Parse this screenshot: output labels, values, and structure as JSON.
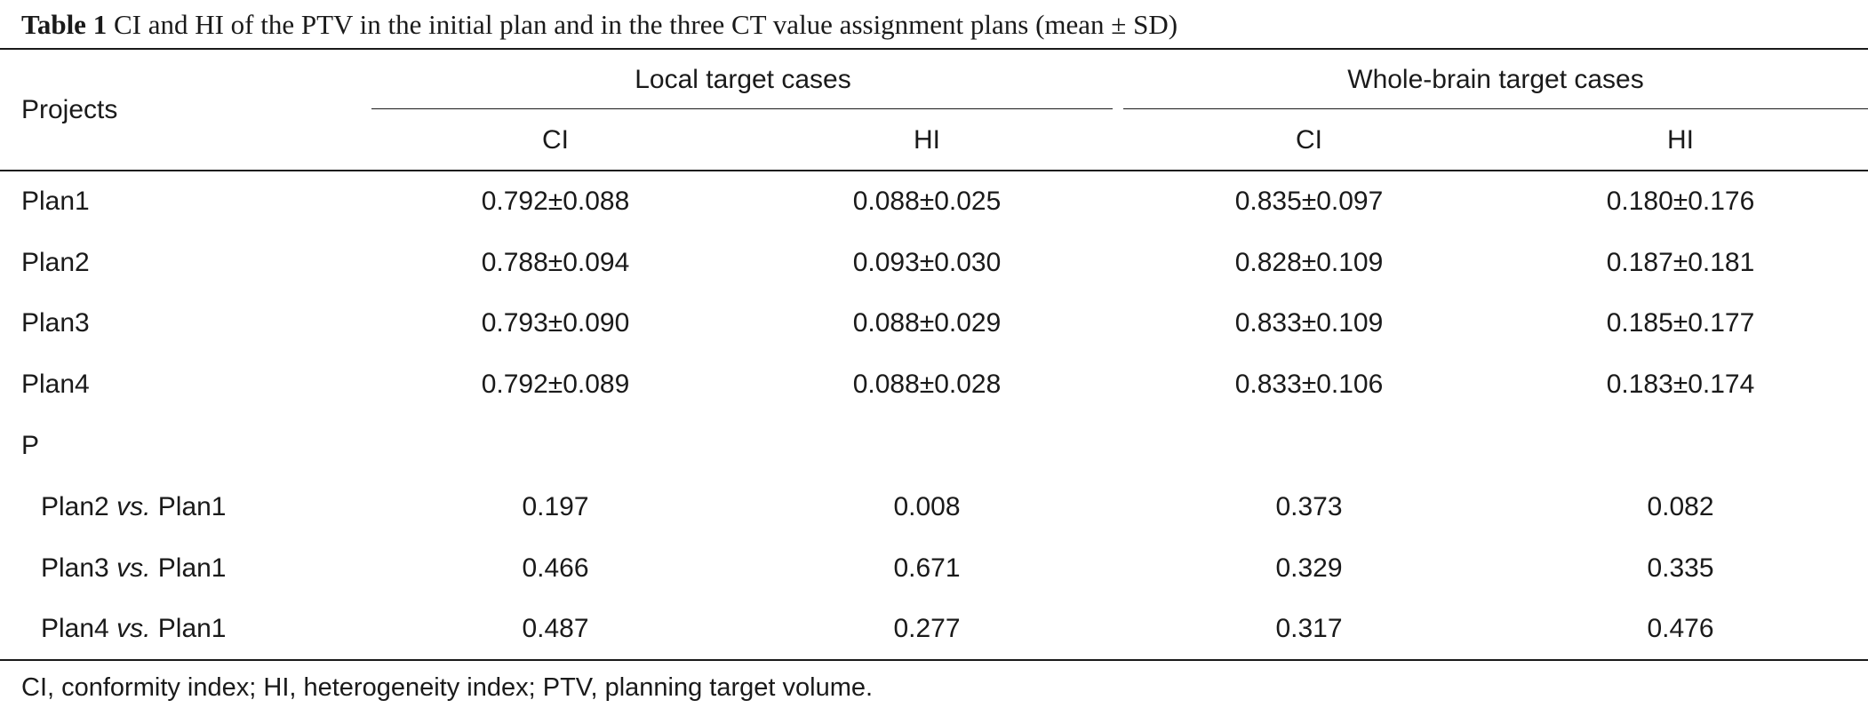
{
  "caption": {
    "label": "Table 1",
    "text": "CI and HI of the PTV in the initial plan and in the three CT value assignment plans (mean ± SD)"
  },
  "header": {
    "projects": "Projects",
    "group_local": "Local target cases",
    "group_whole": "Whole-brain target cases",
    "col_local_ci": "CI",
    "col_local_hi": "HI",
    "col_whole_ci": "CI",
    "col_whole_hi": "HI"
  },
  "rows": [
    {
      "label": "Plan1",
      "local_ci": "0.792±0.088",
      "local_hi": "0.088±0.025",
      "whole_ci": "0.835±0.097",
      "whole_hi": "0.180±0.176"
    },
    {
      "label": "Plan2",
      "local_ci": "0.788±0.094",
      "local_hi": "0.093±0.030",
      "whole_ci": "0.828±0.109",
      "whole_hi": "0.187±0.181"
    },
    {
      "label": "Plan3",
      "local_ci": "0.793±0.090",
      "local_hi": "0.088±0.029",
      "whole_ci": "0.833±0.109",
      "whole_hi": "0.185±0.177"
    },
    {
      "label": "Plan4",
      "local_ci": "0.792±0.089",
      "local_hi": "0.088±0.028",
      "whole_ci": "0.833±0.106",
      "whole_hi": "0.183±0.174"
    }
  ],
  "p_section": {
    "label": "P",
    "vs_word": "vs.",
    "rows": [
      {
        "left": "Plan2",
        "right": "Plan1",
        "local_ci": "0.197",
        "local_hi": "0.008",
        "whole_ci": "0.373",
        "whole_hi": "0.082"
      },
      {
        "left": "Plan3",
        "right": "Plan1",
        "local_ci": "0.466",
        "local_hi": "0.671",
        "whole_ci": "0.329",
        "whole_hi": "0.335"
      },
      {
        "left": "Plan4",
        "right": "Plan1",
        "local_ci": "0.487",
        "local_hi": "0.277",
        "whole_ci": "0.317",
        "whole_hi": "0.476"
      }
    ]
  },
  "footnote": "CI, conformity index; HI, heterogeneity index; PTV, planning target volume."
}
